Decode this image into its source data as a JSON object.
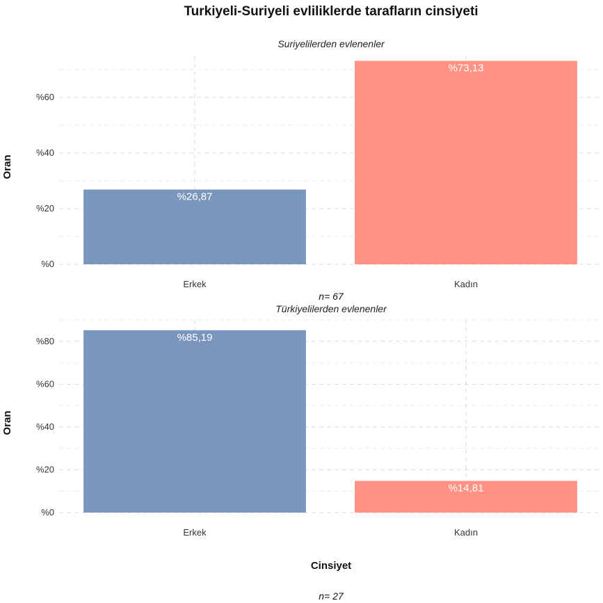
{
  "chart_data": [
    {
      "type": "bar",
      "title": "Turkiyeli-Suriyeli evliliklerde tarafların cinsiyeti",
      "subtitle": "Suriyelilerden evlenenler",
      "ylabel": "Oran",
      "xlabel": "",
      "categories": [
        "Erkek",
        "Kadın"
      ],
      "values": [
        26.87,
        73.13
      ],
      "value_labels": [
        "%26,87",
        "%73,13"
      ],
      "colors": [
        "#7b96bd",
        "#ff9282"
      ],
      "ylim": [
        0,
        75
      ],
      "yticks": [
        0,
        20,
        40,
        60
      ],
      "ytick_labels": [
        "%0",
        "%20",
        "%40",
        "%60"
      ],
      "grid": true,
      "caption": "n=  67"
    },
    {
      "type": "bar",
      "subtitle": "Türkiyelilerden evlenenler",
      "ylabel": "Oran",
      "xlabel": "Cinsiyet",
      "categories": [
        "Erkek",
        "Kadın"
      ],
      "values": [
        85.19,
        14.81
      ],
      "value_labels": [
        "%85,19",
        "%14,81"
      ],
      "colors": [
        "#7b96bd",
        "#ff9282"
      ],
      "ylim": [
        0,
        90
      ],
      "yticks": [
        0,
        20,
        40,
        60,
        80
      ],
      "ytick_labels": [
        "%0",
        "%20",
        "%40",
        "%60",
        "%80"
      ],
      "grid": true,
      "caption": "n=  27"
    }
  ]
}
